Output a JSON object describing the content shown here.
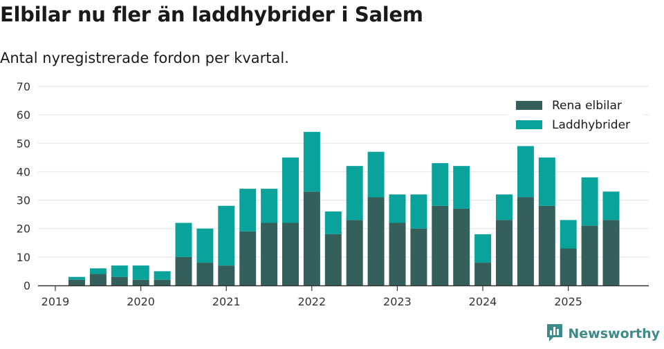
{
  "header": {
    "title": "Elbilar nu fler än laddhybrider i Salem",
    "subtitle": "Antal nyregistrerade fordon per kvartal."
  },
  "brand": {
    "name": "Newsworthy",
    "icon": "bar-chart-icon"
  },
  "colors": {
    "elbilar": "#355f5b",
    "laddhybrider": "#0aa39b",
    "grid": "#e2e2e2",
    "axis": "#333333"
  },
  "chart_data": {
    "type": "bar",
    "stacked": true,
    "title": "Elbilar nu fler än laddhybrider i Salem",
    "subtitle": "Antal nyregistrerade fordon per kvartal.",
    "xlabel": "",
    "ylabel": "",
    "ylim": [
      0,
      70
    ],
    "yticks": [
      0,
      10,
      20,
      30,
      40,
      50,
      60,
      70
    ],
    "xtick_labels": [
      "2019",
      "2020",
      "2021",
      "2022",
      "2023",
      "2024",
      "2025"
    ],
    "legend_position": "top-right",
    "grid": true,
    "categories": [
      "2019 Q2",
      "2019 Q3",
      "2019 Q4",
      "2020 Q1",
      "2020 Q2",
      "2020 Q3",
      "2020 Q4",
      "2021 Q1",
      "2021 Q2",
      "2021 Q3",
      "2021 Q4",
      "2022 Q1",
      "2022 Q2",
      "2022 Q3",
      "2022 Q4",
      "2023 Q1",
      "2023 Q2",
      "2023 Q3",
      "2023 Q4",
      "2024 Q1",
      "2024 Q2",
      "2024 Q3",
      "2024 Q4",
      "2025 Q1",
      "2025 Q2",
      "2025 Q3"
    ],
    "series": [
      {
        "name": "Rena elbilar",
        "values": [
          2,
          4,
          3,
          2,
          2,
          10,
          8,
          7,
          19,
          22,
          22,
          33,
          18,
          23,
          31,
          22,
          20,
          28,
          27,
          8,
          23,
          31,
          28,
          13,
          21,
          23
        ]
      },
      {
        "name": "Laddhybrider",
        "values": [
          1,
          2,
          4,
          5,
          3,
          12,
          12,
          21,
          15,
          12,
          23,
          21,
          8,
          19,
          16,
          10,
          12,
          15,
          15,
          10,
          9,
          18,
          17,
          10,
          17,
          10
        ]
      }
    ]
  }
}
